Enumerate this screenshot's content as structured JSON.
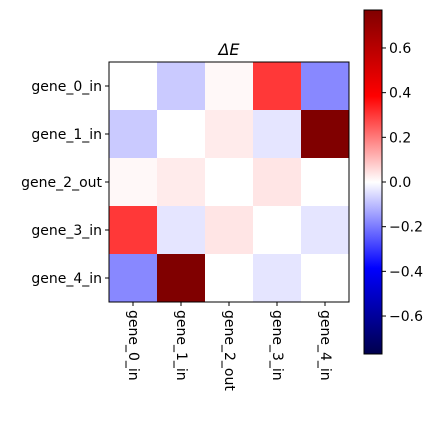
{
  "chart_data": {
    "type": "heatmap",
    "title": "ΔE",
    "row_labels": [
      "gene_0_in",
      "gene_1_in",
      "gene_2_out",
      "gene_3_in",
      "gene_4_in"
    ],
    "col_labels": [
      "gene_0_in",
      "gene_1_in",
      "gene_2_out",
      "gene_3_in",
      "gene_4_in"
    ],
    "values": [
      [
        0.0,
        -0.08,
        0.01,
        0.3,
        -0.18
      ],
      [
        -0.08,
        0.0,
        0.03,
        -0.04,
        0.77
      ],
      [
        0.01,
        0.03,
        0.0,
        0.04,
        0.0
      ],
      [
        0.3,
        -0.04,
        0.04,
        0.0,
        -0.04
      ],
      [
        -0.18,
        0.77,
        0.0,
        -0.04,
        0.0
      ]
    ],
    "colormap": "seismic",
    "vmin": -0.77,
    "vmax": 0.77,
    "colorbar_ticks": [
      0.6,
      0.4,
      0.2,
      0.0,
      -0.2,
      -0.4,
      -0.6
    ],
    "colorbar_tick_labels": [
      "0.6",
      "0.4",
      "0.2",
      "0.0",
      "−0.2",
      "−0.4",
      "−0.6"
    ]
  }
}
